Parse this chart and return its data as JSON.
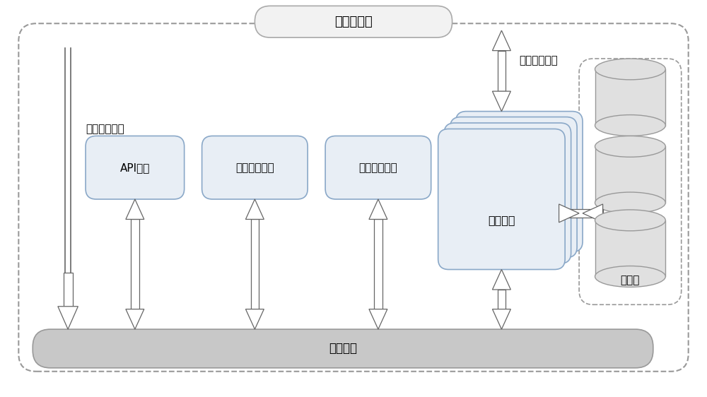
{
  "title": "云平台服务",
  "msg_queue_label": "消息队列",
  "resource_event_label": "资源更新事件",
  "resource_usage_label": "获取资源用量",
  "database_label": "数据库",
  "services": [
    "API服务",
    "消息通知服务",
    "任务调度服务",
    "计费引擎"
  ],
  "bg_color": "#ffffff",
  "box_fill": "#e8eef5",
  "box_edge": "#8aa8c8",
  "dashed_box_edge": "#999999",
  "arrow_color": "#666666",
  "cylinder_fill": "#e0e0e0",
  "cylinder_edge": "#999999",
  "queue_fill": "#c8c8c8",
  "queue_edge": "#999999",
  "title_box_fill": "#f2f2f2",
  "title_box_edge": "#aaaaaa",
  "font_size_main": 11,
  "font_size_title": 12
}
